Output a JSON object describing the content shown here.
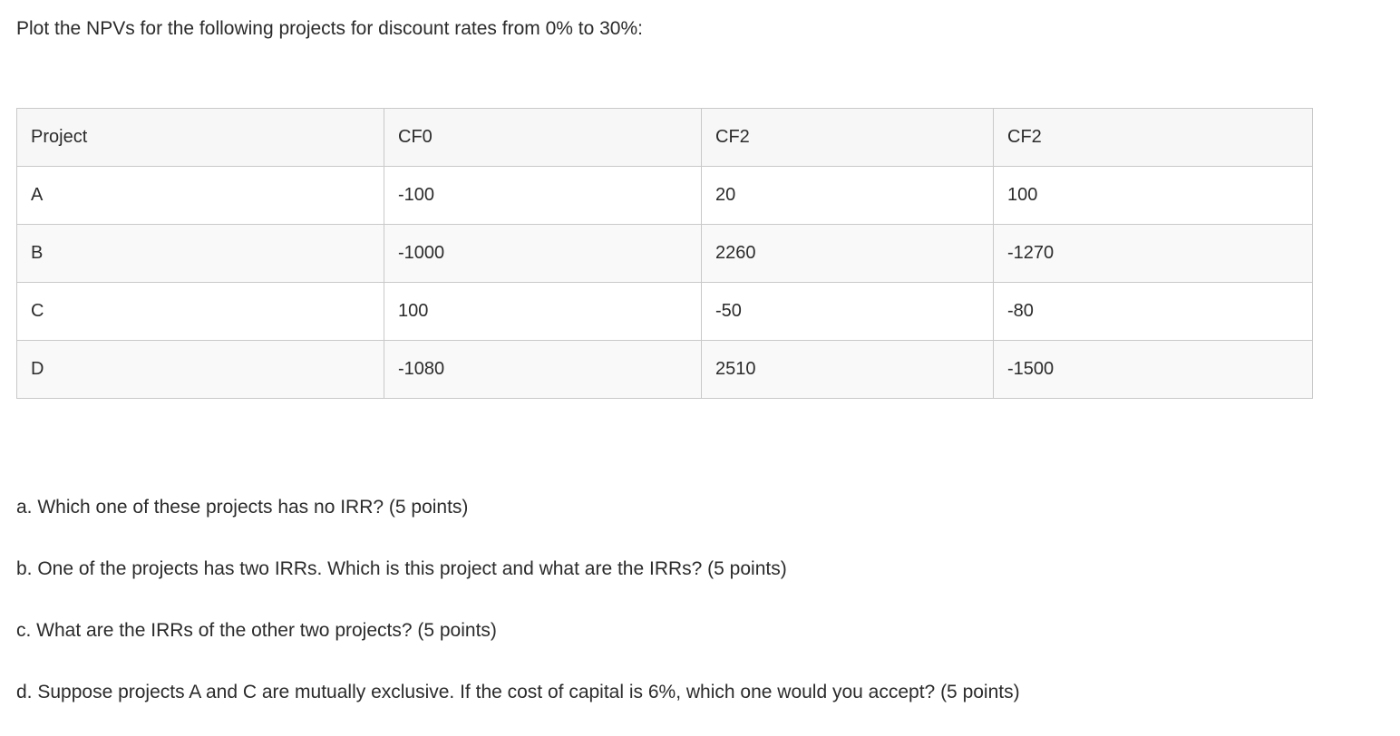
{
  "title": "Plot the NPVs for the following projects for discount rates from 0% to 30%:",
  "table": {
    "headers": [
      "Project",
      "CF0",
      "CF2",
      "CF2"
    ],
    "rows": [
      [
        "A",
        "-100",
        "20",
        "100"
      ],
      [
        "B",
        "-1000",
        "2260",
        "-1270"
      ],
      [
        "C",
        "100",
        "-50",
        "-80"
      ],
      [
        "D",
        "-1080",
        "2510",
        "-1500"
      ]
    ]
  },
  "questions": [
    "a. Which one of these projects has no IRR? (5 points)",
    "b. One of the projects has two IRRs. Which is this project and what are the IRRs? (5 points)",
    "c. What are the IRRs of the other two projects? (5 points)",
    "d. Suppose projects A and C are mutually exclusive. If the cost of capital is 6%, which one would you accept? (5 points)"
  ],
  "colors": {
    "text": "#2b2b2b",
    "table_border": "#c9c9c9",
    "header_bg": "#f7f7f7",
    "stripe_bg": "#f9f9f9"
  }
}
